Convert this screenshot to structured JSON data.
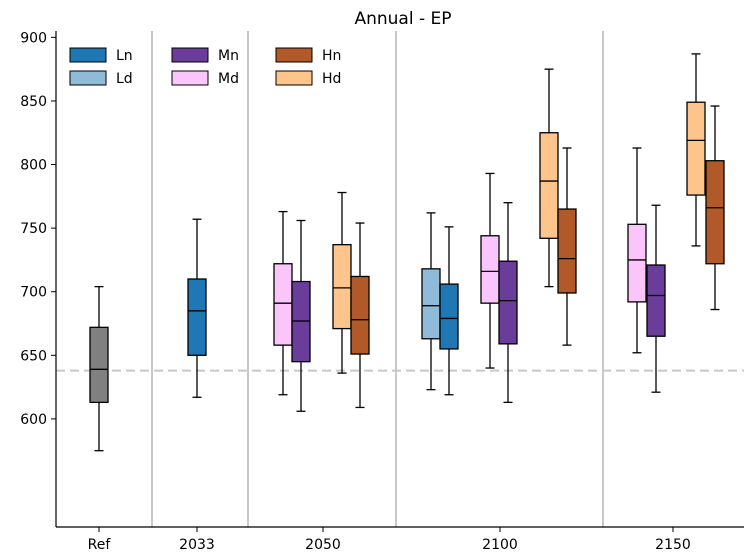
{
  "chart_data": {
    "type": "box",
    "title": "Annual - EP",
    "xlabel": "",
    "ylabel": "",
    "ylim": [
      515,
      905
    ],
    "yticks": [
      600,
      650,
      700,
      750,
      800,
      850,
      900
    ],
    "grid": false,
    "legend_position": "top-left",
    "reference_line": {
      "value": 638,
      "style": "dashed",
      "color": "#c8c8c8"
    },
    "groups": [
      "Ref",
      "2033",
      "2050",
      "2100",
      "2150"
    ],
    "series_colors": {
      "Ref": "#808080",
      "Ln": "#1f78b4",
      "Ld": "#8fbbd9",
      "Mn": "#6a3d9a",
      "Md": "#f9c5fa",
      "Hn": "#b15928",
      "Hd": "#fdc48b"
    },
    "legend": [
      {
        "label": "Ln",
        "color": "#1f78b4"
      },
      {
        "label": "Ld",
        "color": "#8fbbd9"
      },
      {
        "label": "Mn",
        "color": "#6a3d9a"
      },
      {
        "label": "Md",
        "color": "#f9c5fa"
      },
      {
        "label": "Hn",
        "color": "#b15928"
      },
      {
        "label": "Hd",
        "color": "#fdc48b"
      }
    ],
    "boxes": [
      {
        "group": "Ref",
        "series": "Ref",
        "whislo": 575,
        "q1": 613,
        "median": 639,
        "q3": 672,
        "whishi": 704
      },
      {
        "group": "2033",
        "series": "Ln",
        "whislo": 617,
        "q1": 650,
        "median": 685,
        "q3": 710,
        "whishi": 757
      },
      {
        "group": "2050",
        "series": "Md",
        "whislo": 619,
        "q1": 658,
        "median": 691,
        "q3": 722,
        "whishi": 763
      },
      {
        "group": "2050",
        "series": "Mn",
        "whislo": 606,
        "q1": 645,
        "median": 677,
        "q3": 708,
        "whishi": 756
      },
      {
        "group": "2050",
        "series": "Hd",
        "whislo": 636,
        "q1": 671,
        "median": 703,
        "q3": 737,
        "whishi": 778
      },
      {
        "group": "2050",
        "series": "Hn",
        "whislo": 609,
        "q1": 651,
        "median": 678,
        "q3": 712,
        "whishi": 754
      },
      {
        "group": "2100",
        "series": "Ld",
        "whislo": 623,
        "q1": 663,
        "median": 689,
        "q3": 718,
        "whishi": 762
      },
      {
        "group": "2100",
        "series": "Ln",
        "whislo": 619,
        "q1": 655,
        "median": 679,
        "q3": 706,
        "whishi": 751
      },
      {
        "group": "2100",
        "series": "Md",
        "whislo": 640,
        "q1": 691,
        "median": 716,
        "q3": 744,
        "whishi": 793
      },
      {
        "group": "2100",
        "series": "Mn",
        "whislo": 613,
        "q1": 659,
        "median": 693,
        "q3": 724,
        "whishi": 770
      },
      {
        "group": "2100",
        "series": "Hd",
        "whislo": 704,
        "q1": 742,
        "median": 787,
        "q3": 825,
        "whishi": 875
      },
      {
        "group": "2100",
        "series": "Hn",
        "whislo": 658,
        "q1": 699,
        "median": 726,
        "q3": 765,
        "whishi": 813
      },
      {
        "group": "2150",
        "series": "Md",
        "whislo": 652,
        "q1": 692,
        "median": 725,
        "q3": 753,
        "whishi": 813
      },
      {
        "group": "2150",
        "series": "Mn",
        "whislo": 621,
        "q1": 665,
        "median": 697,
        "q3": 721,
        "whishi": 768
      },
      {
        "group": "2150",
        "series": "Hd",
        "whislo": 736,
        "q1": 776,
        "median": 819,
        "q3": 849,
        "whishi": 887
      },
      {
        "group": "2150",
        "series": "Hn",
        "whislo": 686,
        "q1": 722,
        "median": 766,
        "q3": 803,
        "whishi": 846
      }
    ]
  }
}
